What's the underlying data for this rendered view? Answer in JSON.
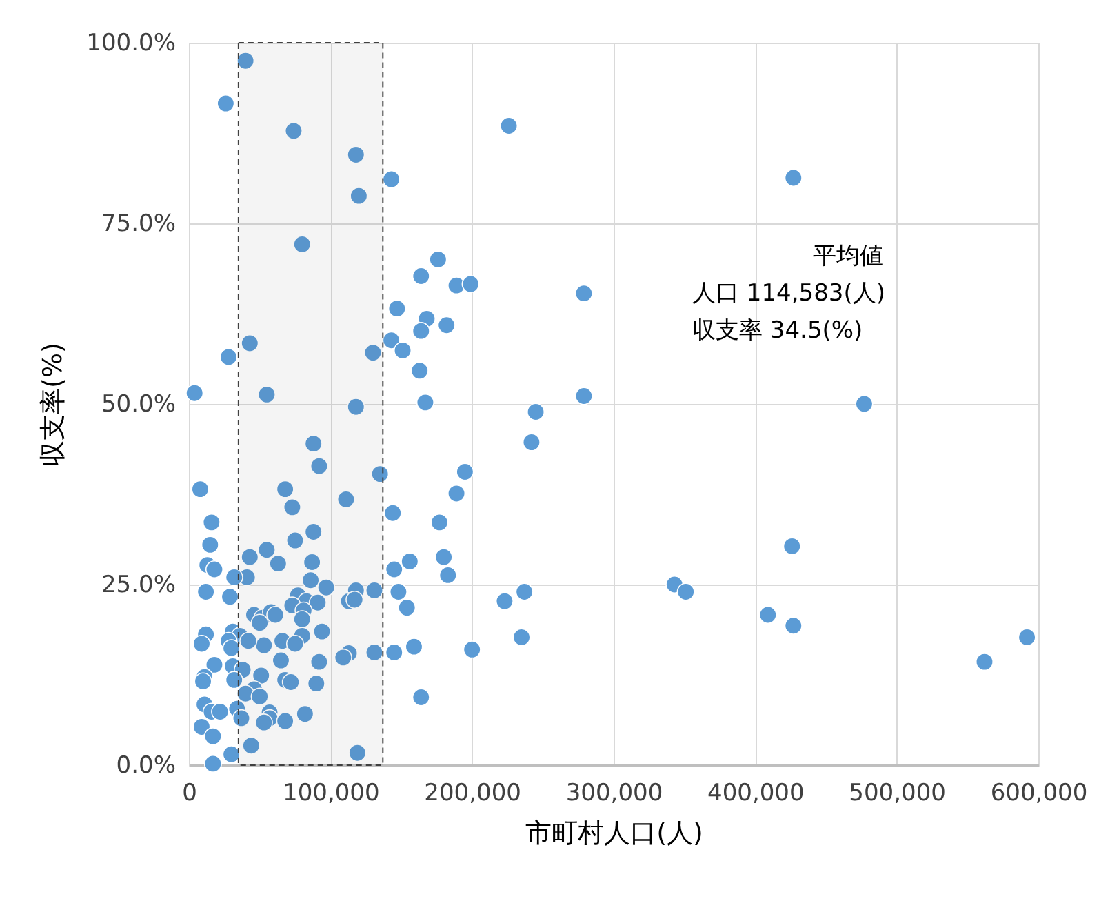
{
  "chart_data": {
    "type": "scatter",
    "xlabel": "市町村人口(人)",
    "ylabel": "収支率(%)",
    "annotations": [
      "平均値",
      "人口 114,583(人)",
      "収支率 34.5(%)"
    ],
    "xlim": [
      0,
      600000
    ],
    "ylim": [
      0,
      100
    ],
    "xticks": [
      0,
      {
        "value": 100000,
        "label": "100,000"
      },
      {
        "value": 200000,
        "label": "200,000"
      },
      {
        "value": 300000,
        "label": "300,000"
      },
      {
        "value": 400000,
        "label": "400,000"
      },
      {
        "value": 500000,
        "label": "500,000"
      },
      {
        "value": 600000,
        "label": "600,000"
      }
    ],
    "yticks": [
      {
        "value": 0,
        "label": "0.0%"
      },
      {
        "value": 25,
        "label": "25.0%"
      },
      {
        "value": 50,
        "label": "50.0%"
      },
      {
        "value": 75,
        "label": "75.0%"
      },
      {
        "value": 100,
        "label": "100.0%"
      }
    ],
    "grid": true,
    "marker": "circle",
    "bands": [
      {
        "axis": "x",
        "from": 35000,
        "to": 137000,
        "color": "#404040"
      }
    ],
    "series": [
      {
        "color": "#5b9bd5",
        "x": [
          40000,
          26000,
          74000,
          118000,
          226000,
          427000,
          143000,
          120000,
          80000,
          176000,
          164000,
          189000,
          199000,
          147000,
          168000,
          182000,
          164000,
          143000,
          43000,
          151000,
          130000,
          28000,
          163000,
          4000,
          55000,
          167000,
          118000,
          279000,
          279000,
          477000,
          245000,
          242000,
          88000,
          92000,
          195000,
          135000,
          189000,
          8000,
          68000,
          111000,
          73000,
          144000,
          16000,
          177000,
          88000,
          75000,
          15000,
          426000,
          55000,
          43000,
          180000,
          87000,
          156000,
          13000,
          63000,
          18000,
          145000,
          183000,
          41000,
          32000,
          86000,
          343000,
          351000,
          12000,
          118000,
          131000,
          237000,
          148000,
          77000,
          97000,
          83000,
          91000,
          73000,
          81000,
          113000,
          117000,
          154000,
          223000,
          29000,
          46000,
          52000,
          58000,
          61000,
          409000,
          50000,
          80000,
          94000,
          31000,
          12000,
          36000,
          28000,
          66000,
          80000,
          235000,
          75000,
          53000,
          592000,
          9000,
          42000,
          30000,
          159000,
          200000,
          145000,
          113000,
          131000,
          109000,
          427000,
          92000,
          65000,
          18000,
          31000,
          562000,
          38000,
          51000,
          11000,
          10000,
          32000,
          68000,
          72000,
          90000,
          46000,
          40000,
          164000,
          50000,
          11000,
          16000,
          22000,
          34000,
          57000,
          82000,
          37000,
          57000,
          68000,
          53000,
          9000,
          17000,
          44000,
          30000,
          119000,
          17000
        ],
        "values": [
          97.5,
          91.6,
          87.8,
          84.5,
          88.5,
          81.3,
          81.1,
          78.8,
          72.1,
          70.0,
          67.7,
          66.4,
          66.6,
          63.2,
          61.8,
          60.9,
          60.1,
          58.8,
          58.4,
          57.4,
          57.1,
          56.5,
          54.6,
          51.5,
          51.3,
          50.2,
          49.6,
          51.1,
          65.3,
          50.0,
          48.9,
          44.7,
          44.5,
          41.4,
          40.6,
          40.3,
          37.6,
          38.2,
          38.2,
          36.8,
          35.7,
          34.9,
          33.6,
          33.6,
          32.3,
          31.1,
          30.5,
          30.3,
          29.8,
          28.8,
          28.8,
          28.1,
          28.2,
          27.7,
          27.9,
          27.1,
          27.1,
          26.3,
          26.0,
          26.0,
          25.6,
          25.0,
          24.0,
          24.0,
          24.2,
          24.2,
          24.0,
          24.0,
          23.5,
          24.6,
          22.7,
          22.5,
          22.1,
          21.4,
          22.7,
          22.9,
          21.8,
          22.7,
          23.3,
          20.8,
          20.4,
          21.2,
          20.8,
          20.8,
          19.7,
          20.2,
          18.5,
          18.5,
          18.1,
          17.9,
          17.2,
          17.2,
          17.9,
          17.7,
          16.8,
          16.6,
          17.7,
          16.8,
          17.2,
          16.2,
          16.4,
          16.0,
          15.6,
          15.5,
          15.6,
          14.9,
          19.3,
          14.3,
          14.5,
          13.9,
          13.7,
          14.3,
          13.2,
          12.4,
          12.2,
          11.6,
          11.8,
          11.8,
          11.5,
          11.3,
          10.5,
          9.9,
          9.4,
          9.5,
          8.4,
          7.4,
          7.4,
          7.8,
          7.3,
          7.1,
          6.5,
          6.5,
          6.1,
          5.9,
          5.3,
          4.0,
          2.7,
          1.5,
          1.7,
          0.2
        ]
      }
    ]
  }
}
